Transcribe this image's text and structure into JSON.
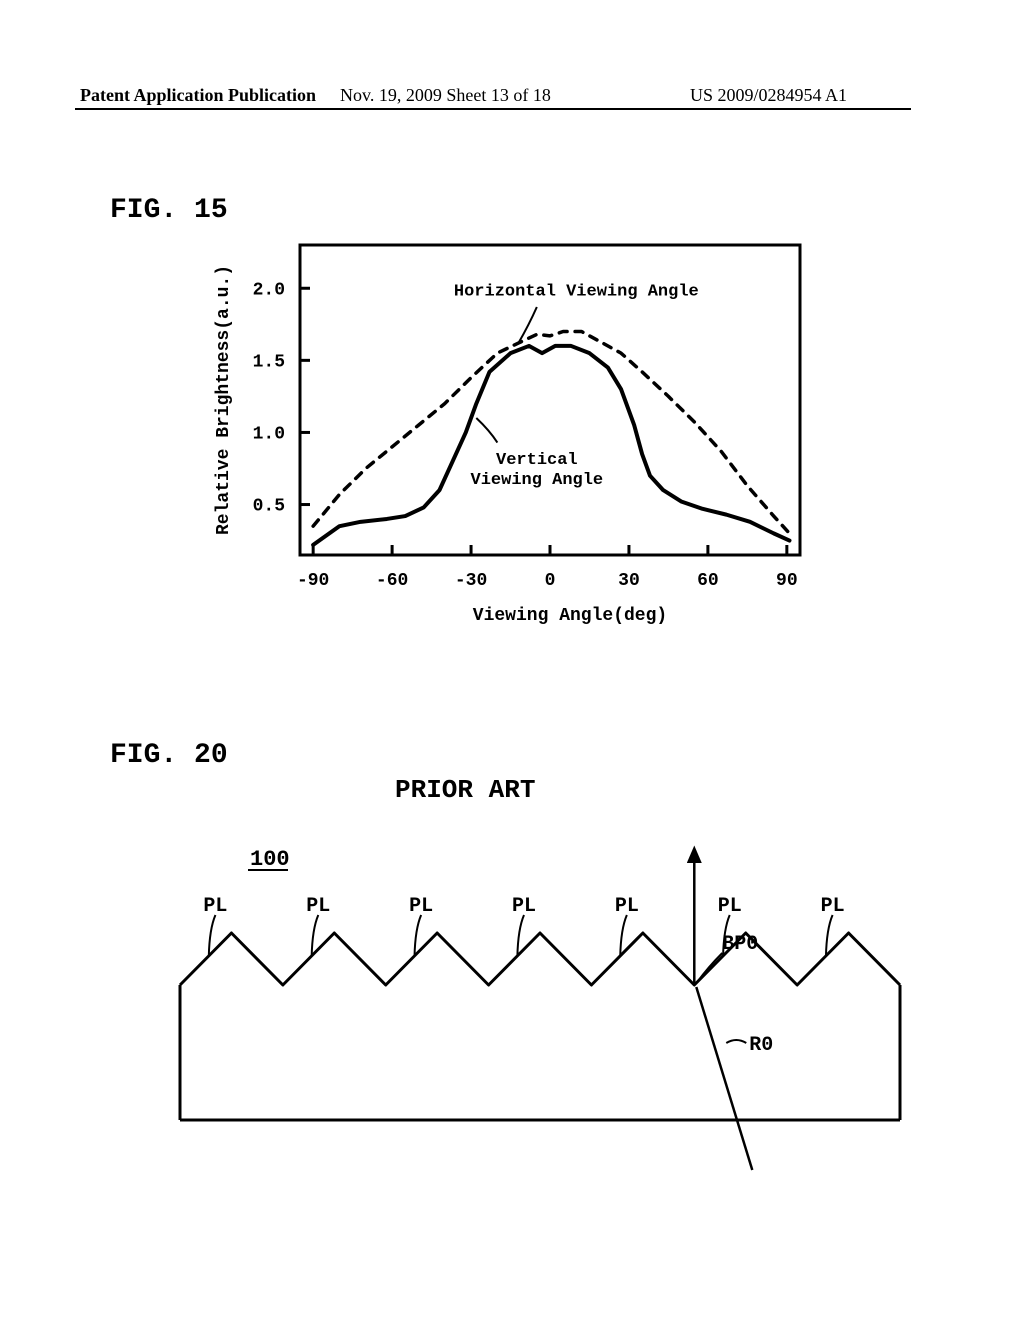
{
  "header": {
    "left": "Patent Application Publication",
    "mid": "Nov. 19, 2009  Sheet 13 of 18",
    "right": "US 2009/0284954 A1"
  },
  "fig15": {
    "label": "FIG. 15",
    "chart": {
      "type": "line",
      "xlabel": "Viewing Angle(deg)",
      "ylabel": "Relative Brightness(a.u.)",
      "xlim": [
        -95,
        95
      ],
      "ylim": [
        0.15,
        2.3
      ],
      "xticks": [
        -90,
        -60,
        -30,
        0,
        30,
        60,
        90
      ],
      "yticks": [
        0.5,
        1.0,
        1.5,
        2.0
      ],
      "background_color": "#ffffff",
      "axis_color": "#000000",
      "label_fontsize": 18,
      "tick_fontsize": 18,
      "series": [
        {
          "name": "Horizontal Viewing Angle",
          "label_pos": {
            "x": 10,
            "y": 1.95
          },
          "leader_from": {
            "x": -5,
            "y": 1.87
          },
          "leader_to": {
            "x": -12,
            "y": 1.62
          },
          "color": "#000000",
          "dash": "8,8",
          "width": 3.5,
          "points": [
            [
              -90,
              0.35
            ],
            [
              -80,
              0.57
            ],
            [
              -70,
              0.75
            ],
            [
              -60,
              0.9
            ],
            [
              -50,
              1.05
            ],
            [
              -40,
              1.2
            ],
            [
              -30,
              1.38
            ],
            [
              -20,
              1.55
            ],
            [
              -12,
              1.62
            ],
            [
              -5,
              1.68
            ],
            [
              0,
              1.67
            ],
            [
              5,
              1.7
            ],
            [
              12,
              1.7
            ],
            [
              20,
              1.62
            ],
            [
              27,
              1.55
            ],
            [
              35,
              1.42
            ],
            [
              45,
              1.25
            ],
            [
              55,
              1.07
            ],
            [
              65,
              0.87
            ],
            [
              75,
              0.63
            ],
            [
              85,
              0.42
            ],
            [
              91,
              0.3
            ]
          ]
        },
        {
          "name": "Vertical\nViewing Angle",
          "label_pos": {
            "x": -5,
            "y": 0.78
          },
          "leader_from": {
            "x": -20,
            "y": 0.93
          },
          "leader_to": {
            "x": -28,
            "y": 1.1
          },
          "color": "#000000",
          "dash": "none",
          "width": 4,
          "points": [
            [
              -90,
              0.22
            ],
            [
              -80,
              0.35
            ],
            [
              -72,
              0.38
            ],
            [
              -62,
              0.4
            ],
            [
              -55,
              0.42
            ],
            [
              -48,
              0.48
            ],
            [
              -42,
              0.6
            ],
            [
              -37,
              0.8
            ],
            [
              -32,
              1.0
            ],
            [
              -28,
              1.2
            ],
            [
              -23,
              1.42
            ],
            [
              -15,
              1.55
            ],
            [
              -8,
              1.6
            ],
            [
              -3,
              1.55
            ],
            [
              2,
              1.6
            ],
            [
              8,
              1.6
            ],
            [
              15,
              1.55
            ],
            [
              22,
              1.45
            ],
            [
              27,
              1.3
            ],
            [
              32,
              1.05
            ],
            [
              35,
              0.85
            ],
            [
              38,
              0.7
            ],
            [
              43,
              0.6
            ],
            [
              50,
              0.52
            ],
            [
              58,
              0.47
            ],
            [
              67,
              0.43
            ],
            [
              76,
              0.38
            ],
            [
              85,
              0.3
            ],
            [
              91,
              0.25
            ]
          ]
        }
      ]
    }
  },
  "fig20": {
    "label": "FIG. 20",
    "title": "PRIOR ART",
    "ref_num": "100",
    "prism_label": "PL",
    "ray_label": "R0",
    "point_label": "BP0",
    "prism_count": 7,
    "colors": {
      "line": "#000000",
      "bg": "#ffffff"
    }
  }
}
